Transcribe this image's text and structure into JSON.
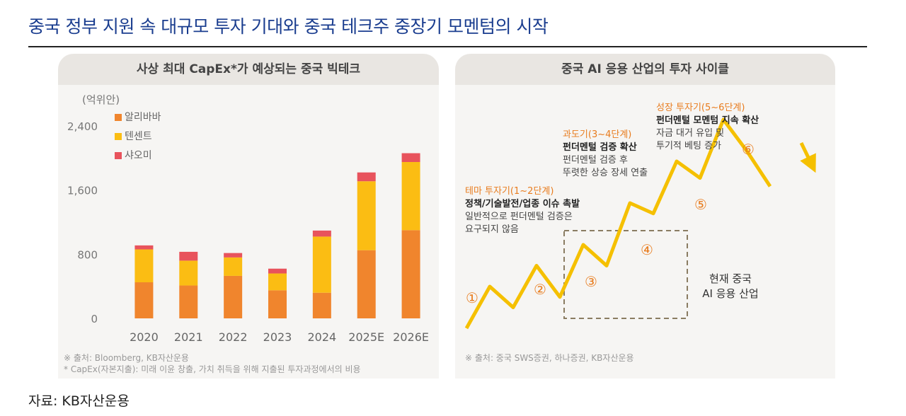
{
  "main_title": "중국 정부 지원 속 대규모 투자 기대와 중국 테크주 중장기 모멘텀의 시작",
  "source": "자료: KB자산운용",
  "colors": {
    "alibaba": "#f0852d",
    "tencent": "#fbbd13",
    "xiaomi": "#e8535c",
    "curve": "#f5c000",
    "orange_text": "#e87c1e",
    "title": "#1a3d8f"
  },
  "left_panel": {
    "header": "사상 최대 CapEx*가 예상되는 중국 빅테크",
    "unit": "(억위안)",
    "notes": [
      "※ 출처: Bloomberg, KB자산운용",
      "* CapEx(자본지출): 미래 이윤 창출, 가치 취득을 위해 지출된 투자과정에서의 비용"
    ]
  },
  "right_panel": {
    "header": "중국 AI 응용 산업의 투자 사이클",
    "note": "※ 출처: 중국 SWS증권, 하나증권, KB자산운용",
    "current_label": [
      "현재 중국",
      "AI 응용 산업"
    ],
    "phases": [
      {
        "title": "테마 투자기(1~2단계)",
        "bold": "정책/기술발전/업종 이슈 촉발",
        "desc": [
          "일반적으로 펀더멘털 검증은",
          "요구되지 않음"
        ]
      },
      {
        "title": "과도기(3~4단계)",
        "bold": "펀더멘털 검증 확산",
        "desc": [
          "펀더멘털 검증 후",
          "뚜렷한 상승 장세 연출"
        ]
      },
      {
        "title": "성장 투자기(5~6단계)",
        "bold": "펀더멘털 모멘텀 지속 확산",
        "desc": [
          "자금 대거 유입 및",
          "투기적 베팅 증가"
        ]
      }
    ],
    "steps": [
      "①",
      "②",
      "③",
      "④",
      "⑤",
      "⑥"
    ],
    "cycle_points": [
      0,
      2,
      1,
      3,
      1.5,
      4,
      3,
      6,
      5.5,
      8,
      7.2,
      10,
      8.5,
      6.8
    ]
  },
  "chart_data": {
    "type": "bar",
    "stacked": true,
    "categories": [
      "2020",
      "2021",
      "2022",
      "2023",
      "2024",
      "2025E",
      "2026E"
    ],
    "series": [
      {
        "name": "알리바바",
        "values": [
          450,
          410,
          530,
          350,
          320,
          850,
          1100
        ]
      },
      {
        "name": "텐센트",
        "values": [
          410,
          310,
          230,
          210,
          700,
          860,
          850
        ]
      },
      {
        "name": "샤오미",
        "values": [
          50,
          110,
          55,
          60,
          75,
          110,
          110
        ]
      }
    ],
    "yticks": [
      "0",
      "800",
      "1,600",
      "2,400"
    ],
    "ylim": [
      0,
      2400
    ],
    "legend_position": "top-left"
  }
}
